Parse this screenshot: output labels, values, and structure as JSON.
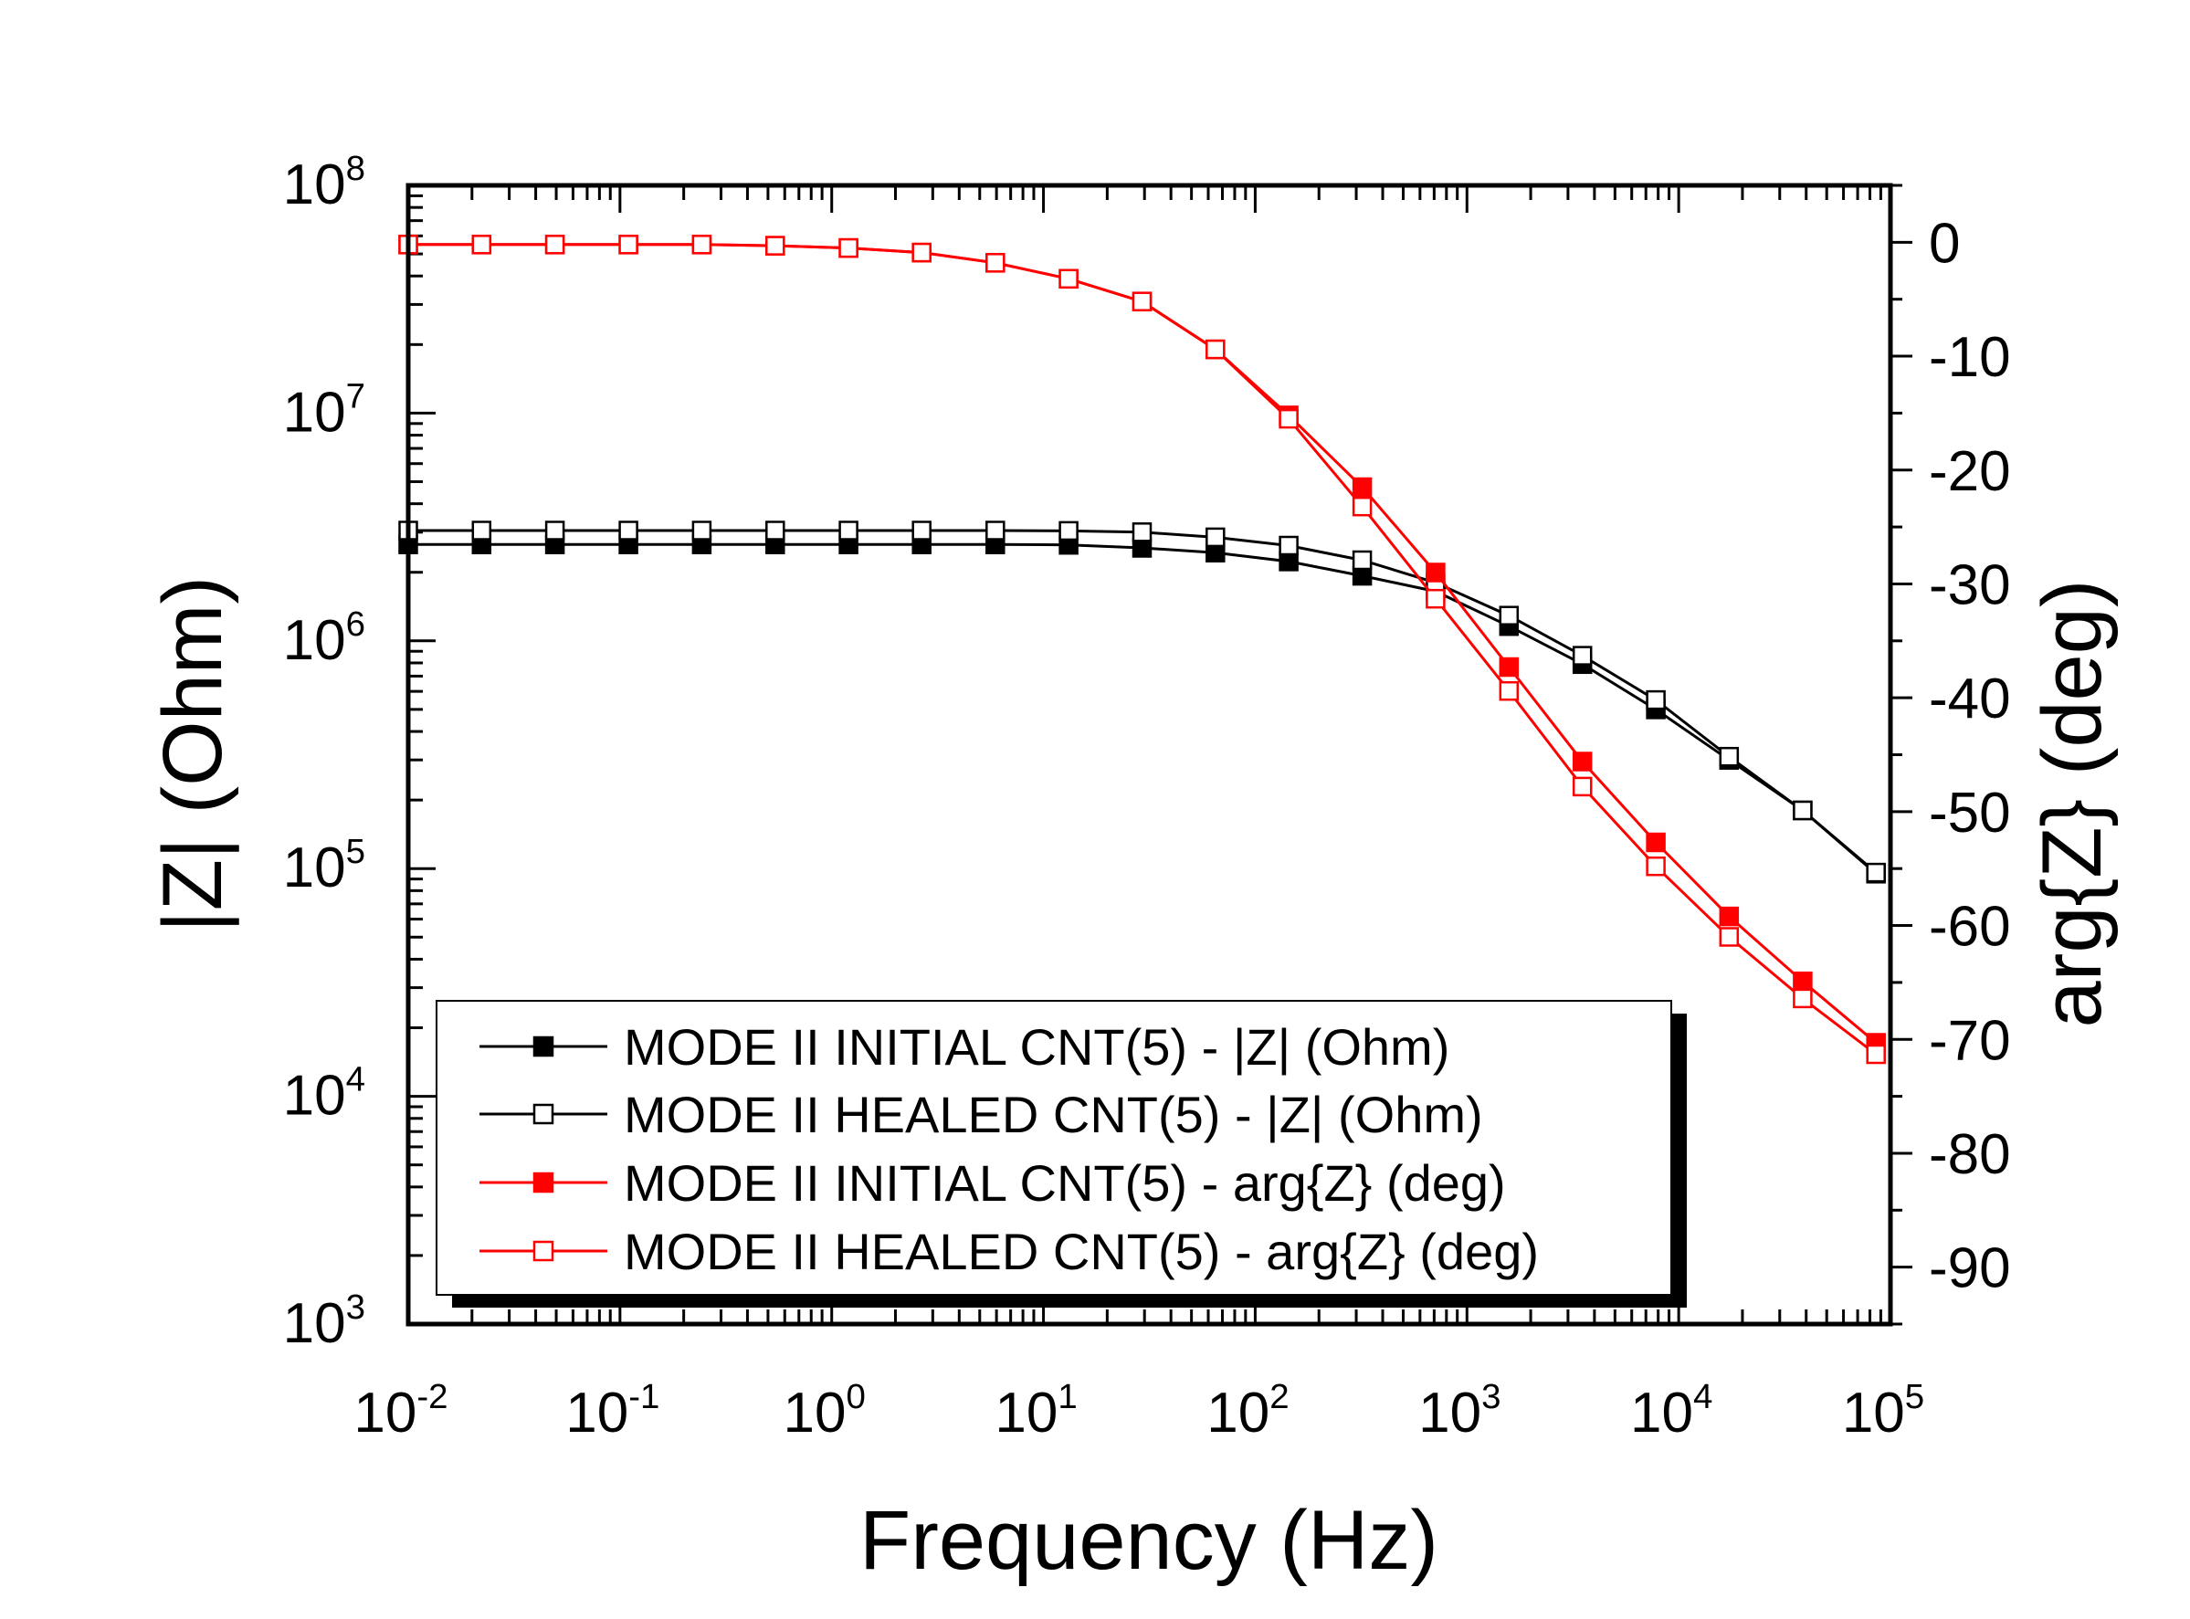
{
  "chart_data": {
    "type": "line",
    "title": "",
    "xlabel": "Frequency (Hz)",
    "ylabel_left": "|Z| (Ohm)",
    "ylabel_right": "arg{Z} (deg)",
    "x_scale": "log",
    "y_left_scale": "log",
    "xlim": [
      0.01,
      100000
    ],
    "ylim_left": [
      1000,
      100000000
    ],
    "ylim_right": [
      -95,
      5
    ],
    "x_ticks": [
      {
        "value": 0.01,
        "base": "10",
        "exp": "-2"
      },
      {
        "value": 0.1,
        "base": "10",
        "exp": "-1"
      },
      {
        "value": 1,
        "base": "10",
        "exp": "0"
      },
      {
        "value": 10,
        "base": "10",
        "exp": "1"
      },
      {
        "value": 100,
        "base": "10",
        "exp": "2"
      },
      {
        "value": 1000,
        "base": "10",
        "exp": "3"
      },
      {
        "value": 10000,
        "base": "10",
        "exp": "4"
      },
      {
        "value": 100000,
        "base": "10",
        "exp": "5"
      }
    ],
    "y_left_ticks": [
      {
        "value": 1000,
        "base": "10",
        "exp": "3"
      },
      {
        "value": 10000,
        "base": "10",
        "exp": "4"
      },
      {
        "value": 100000,
        "base": "10",
        "exp": "5"
      },
      {
        "value": 1000000,
        "base": "10",
        "exp": "6"
      },
      {
        "value": 10000000,
        "base": "10",
        "exp": "7"
      },
      {
        "value": 100000000,
        "base": "10",
        "exp": "8"
      }
    ],
    "y_right_ticks": [
      {
        "value": 0,
        "label": "0"
      },
      {
        "value": -10,
        "label": "-10"
      },
      {
        "value": -20,
        "label": "-20"
      },
      {
        "value": -30,
        "label": "-30"
      },
      {
        "value": -40,
        "label": "-40"
      },
      {
        "value": -50,
        "label": "-50"
      },
      {
        "value": -60,
        "label": "-60"
      },
      {
        "value": -70,
        "label": "-70"
      },
      {
        "value": -80,
        "label": "-80"
      },
      {
        "value": -90,
        "label": "-90"
      }
    ],
    "x": [
      0.01,
      0.0222,
      0.0493,
      0.1096,
      0.2434,
      0.5405,
      1.2,
      2.66,
      5.92,
      13.14,
      29.2,
      64.85,
      144,
      320,
      711,
      1580,
      3510,
      7800,
      17300,
      38500,
      85500
    ],
    "series": [
      {
        "name": "MODE II INITIAL CNT(5) - |Z| (Ohm)",
        "axis": "left",
        "color": "#000000",
        "marker": "filled-square",
        "values": [
          2650000,
          2650000,
          2650000,
          2650000,
          2650000,
          2650000,
          2650000,
          2650000,
          2650000,
          2640000,
          2560000,
          2440000,
          2230000,
          1930000,
          1650000,
          1160000,
          790000,
          500000,
          300000,
          180000,
          95000
        ]
      },
      {
        "name": "MODE II HEALED CNT(5) - |Z| (Ohm)",
        "axis": "left",
        "color": "#000000",
        "marker": "open-square",
        "values": [
          3050000,
          3050000,
          3050000,
          3050000,
          3050000,
          3050000,
          3050000,
          3050000,
          3050000,
          3040000,
          3000000,
          2850000,
          2620000,
          2260000,
          1800000,
          1290000,
          860000,
          550000,
          310000,
          180000,
          96000
        ]
      },
      {
        "name": "MODE II INITIAL CNT(5) - arg{Z} (deg)",
        "axis": "right",
        "color": "#ff0000",
        "marker": "filled-square",
        "values": [
          -0.2,
          -0.2,
          -0.2,
          -0.2,
          -0.2,
          -0.3,
          -0.5,
          -0.9,
          -1.8,
          -3.2,
          -5.2,
          -9.4,
          -15.2,
          -21.5,
          -29.0,
          -37.3,
          -45.6,
          -52.7,
          -59.2,
          -64.9,
          -70.3
        ]
      },
      {
        "name": "MODE II HEALED CNT(5) - arg{Z} (deg)",
        "axis": "right",
        "color": "#ff0000",
        "marker": "open-square",
        "values": [
          -0.2,
          -0.2,
          -0.2,
          -0.2,
          -0.2,
          -0.3,
          -0.5,
          -0.9,
          -1.8,
          -3.2,
          -5.2,
          -9.4,
          -15.5,
          -23.2,
          -31.3,
          -39.4,
          -47.8,
          -54.8,
          -61.0,
          -66.4,
          -71.3
        ]
      }
    ],
    "legend_position": "bottom-left",
    "grid": false
  }
}
